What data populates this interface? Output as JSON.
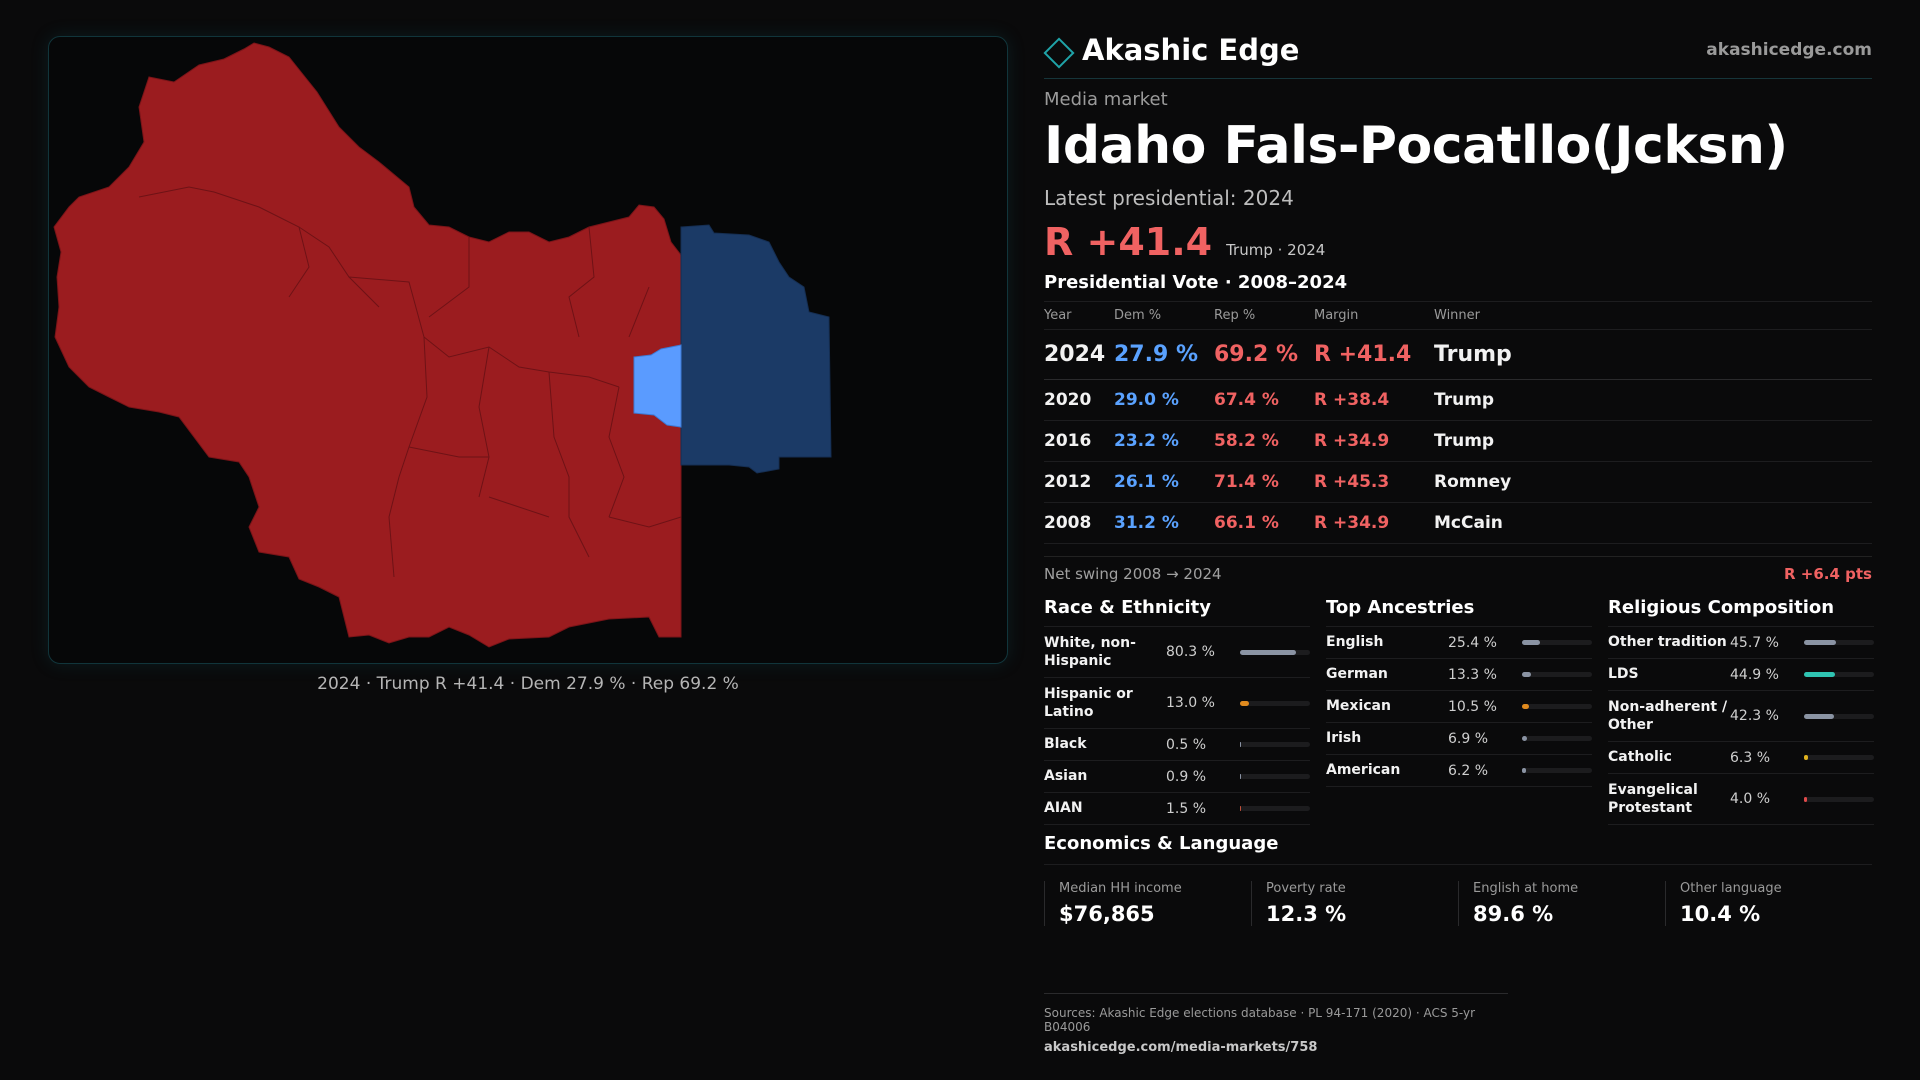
{
  "brand": {
    "name": "Akashic Edge",
    "url": "akashicedge.com",
    "accent": "#1fa3a8"
  },
  "header": {
    "kicker": "Media market",
    "title": "Idaho Fals-Pocatllo(Jcksn)",
    "latest_label": "Latest presidential: 2024",
    "margin": "R +41.4",
    "margin_sub": "Trump · 2024"
  },
  "map": {
    "caption": "2024 · Trump R +41.4 · Dem 27.9 % · Rep 69.2 %",
    "colors": {
      "rep_strong": "#9b1c1f",
      "dem_strong": "#1b3a66",
      "dem_light": "#5a9bff",
      "border": "#7a1418"
    }
  },
  "vote_table": {
    "title": "Presidential Vote · 2008–2024",
    "headers": [
      "Year",
      "Dem %",
      "Rep %",
      "Margin",
      "Winner"
    ],
    "rows": [
      {
        "year": "2024",
        "dem": "27.9 %",
        "rep": "69.2 %",
        "margin": "R +41.4",
        "winner": "Trump"
      },
      {
        "year": "2020",
        "dem": "29.0 %",
        "rep": "67.4 %",
        "margin": "R +38.4",
        "winner": "Trump"
      },
      {
        "year": "2016",
        "dem": "23.2 %",
        "rep": "58.2 %",
        "margin": "R +34.9",
        "winner": "Trump"
      },
      {
        "year": "2012",
        "dem": "26.1 %",
        "rep": "71.4 %",
        "margin": "R +45.3",
        "winner": "Romney"
      },
      {
        "year": "2008",
        "dem": "31.2 %",
        "rep": "66.1 %",
        "margin": "R +34.9",
        "winner": "McCain"
      }
    ],
    "swing_label": "Net swing 2008 → 2024",
    "swing_value": "R +6.4 pts"
  },
  "race": {
    "title": "Race & Ethnicity",
    "items": [
      {
        "label": "White, non-Hispanic",
        "value": "80.3 %",
        "pct": 80.3,
        "color": "#8a93a3"
      },
      {
        "label": "Hispanic or Latino",
        "value": "13.0 %",
        "pct": 13.0,
        "color": "#e08a1e"
      },
      {
        "label": "Black",
        "value": "0.5 %",
        "pct": 0.5,
        "color": "#8a93a3"
      },
      {
        "label": "Asian",
        "value": "0.9 %",
        "pct": 0.9,
        "color": "#8a93a3"
      },
      {
        "label": "AIAN",
        "value": "1.5 %",
        "pct": 1.5,
        "color": "#c0503a"
      }
    ]
  },
  "ancestry": {
    "title": "Top Ancestries",
    "items": [
      {
        "label": "English",
        "value": "25.4 %",
        "pct": 25.4,
        "color": "#8a93a3"
      },
      {
        "label": "German",
        "value": "13.3 %",
        "pct": 13.3,
        "color": "#8a93a3"
      },
      {
        "label": "Mexican",
        "value": "10.5 %",
        "pct": 10.5,
        "color": "#e08a1e"
      },
      {
        "label": "Irish",
        "value": "6.9 %",
        "pct": 6.9,
        "color": "#8a93a3"
      },
      {
        "label": "American",
        "value": "6.2 %",
        "pct": 6.2,
        "color": "#8a93a3"
      }
    ]
  },
  "religion": {
    "title": "Religious Composition",
    "items": [
      {
        "label": "Other tradition",
        "value": "45.7 %",
        "pct": 45.7,
        "color": "#8a93a3"
      },
      {
        "label": "LDS",
        "value": "44.9 %",
        "pct": 44.9,
        "color": "#2fc4b2"
      },
      {
        "label": "Non-adherent / Other",
        "value": "42.3 %",
        "pct": 42.3,
        "color": "#8a93a3"
      },
      {
        "label": "Catholic",
        "value": "6.3 %",
        "pct": 6.3,
        "color": "#e0b21e"
      },
      {
        "label": "Evangelical Protestant",
        "value": "4.0 %",
        "pct": 4.0,
        "color": "#e04a4a"
      }
    ]
  },
  "economics": {
    "title": "Economics & Language",
    "items": [
      {
        "label": "Median HH income",
        "value": "$76,865"
      },
      {
        "label": "Poverty rate",
        "value": "12.3 %"
      },
      {
        "label": "English at home",
        "value": "89.6 %"
      },
      {
        "label": "Other language",
        "value": "10.4 %"
      }
    ]
  },
  "sources": {
    "line": "Sources: Akashic Edge elections database · PL 94-171 (2020) · ACS 5-yr B04006",
    "url": "akashicedge.com/media-markets/758"
  }
}
